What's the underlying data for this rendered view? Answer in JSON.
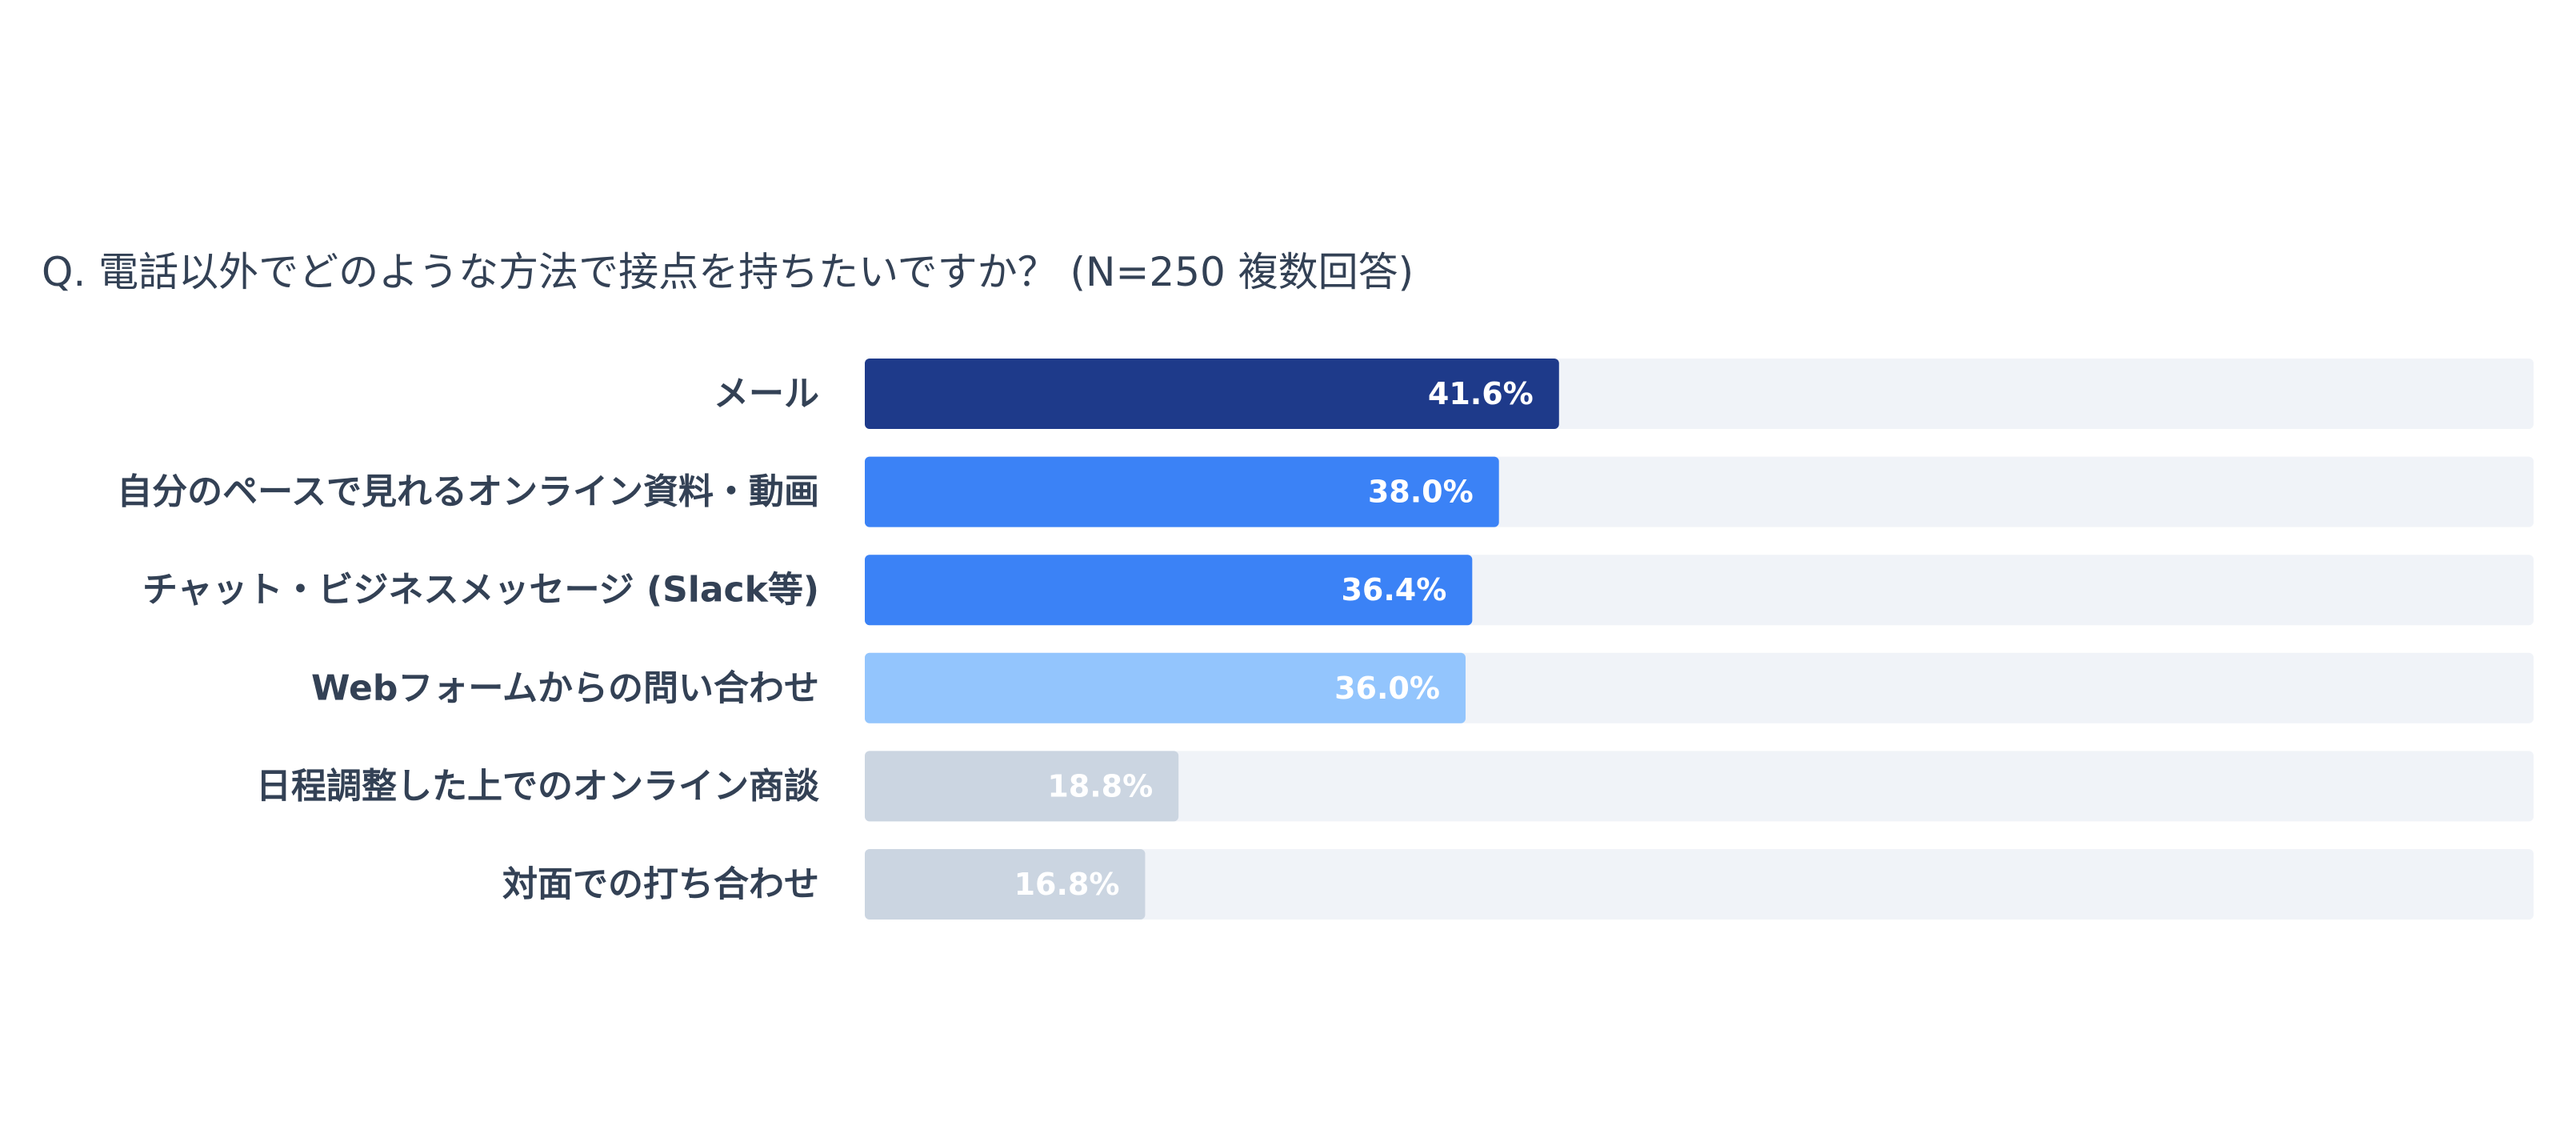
{
  "chart_data": {
    "type": "bar",
    "orientation": "horizontal",
    "title": "Q. 電話以外でどのような方法で接点を持ちたいですか？ (N=250 複数回答)",
    "xlim": [
      0,
      100
    ],
    "unit": "%",
    "categories": [
      "メール",
      "自分のペースで見れるオンライン資料・動画",
      "チャット・ビジネスメッセージ (Slack等)",
      "Webフォームからの問い合わせ",
      "日程調整した上でのオンライン商談",
      "対面での打ち合わせ"
    ],
    "values": [
      41.6,
      38.0,
      36.4,
      36.0,
      18.8,
      16.8
    ],
    "value_labels": [
      "41.6%",
      "38.0%",
      "36.4%",
      "36.0%",
      "18.8%",
      "16.8%"
    ],
    "bar_colors": [
      "#1e3a8a",
      "#3b82f6",
      "#3b82f6",
      "#93c5fd",
      "#cbd5e1",
      "#cbd5e1"
    ],
    "track_color": "#f0f3f8",
    "label_color": "#334155",
    "legend": "none",
    "grid": false
  }
}
